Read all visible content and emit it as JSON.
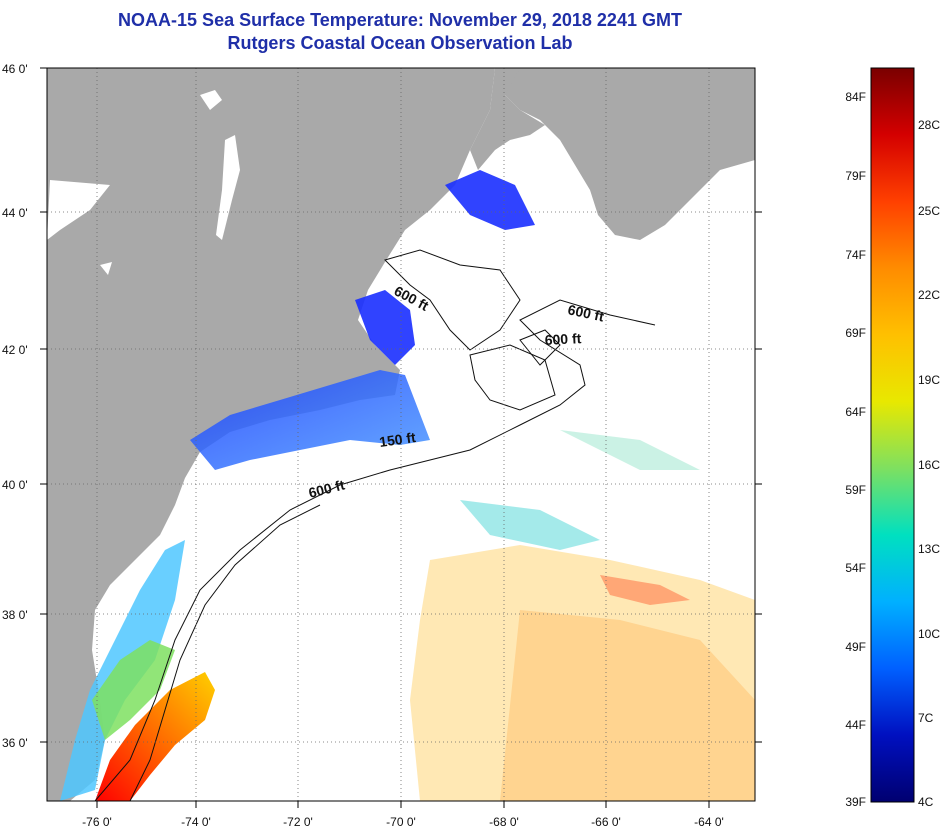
{
  "header": {
    "title": "NOAA-15 Sea Surface Temperature:  November 29, 2018 2241 GMT",
    "subtitle": "Rutgers Coastal Ocean Observation Lab"
  },
  "map": {
    "lat_labels": [
      "46 0'",
      "44 0'",
      "42 0'",
      "40 0'",
      "38 0'",
      "36 0'"
    ],
    "lon_labels": [
      "-76 0'",
      "-74 0'",
      "-72 0'",
      "-70 0'",
      "-68 0'",
      "-66 0'",
      "-64 0'"
    ],
    "contour_labels": [
      "600 ft",
      "600 ft",
      "600 ft",
      "150 ft",
      "600 ft"
    ],
    "colors": {
      "land": "#a9a9a9",
      "water_no_data": "#ffffff",
      "grid": "#555555"
    }
  },
  "colorbar": {
    "f_labels": [
      "84F",
      "79F",
      "74F",
      "69F",
      "64F",
      "59F",
      "54F",
      "49F",
      "44F",
      "39F"
    ],
    "c_labels": [
      "28C",
      "25C",
      "22C",
      "19C",
      "16C",
      "13C",
      "10C",
      "7C",
      "4C"
    ],
    "gradient_colors": [
      "#7a0000",
      "#d40000",
      "#ff4000",
      "#ff8c00",
      "#ffc000",
      "#e8e800",
      "#7ee060",
      "#00e0c0",
      "#00b0ff",
      "#0060ff",
      "#0010c0",
      "#000070"
    ]
  }
}
